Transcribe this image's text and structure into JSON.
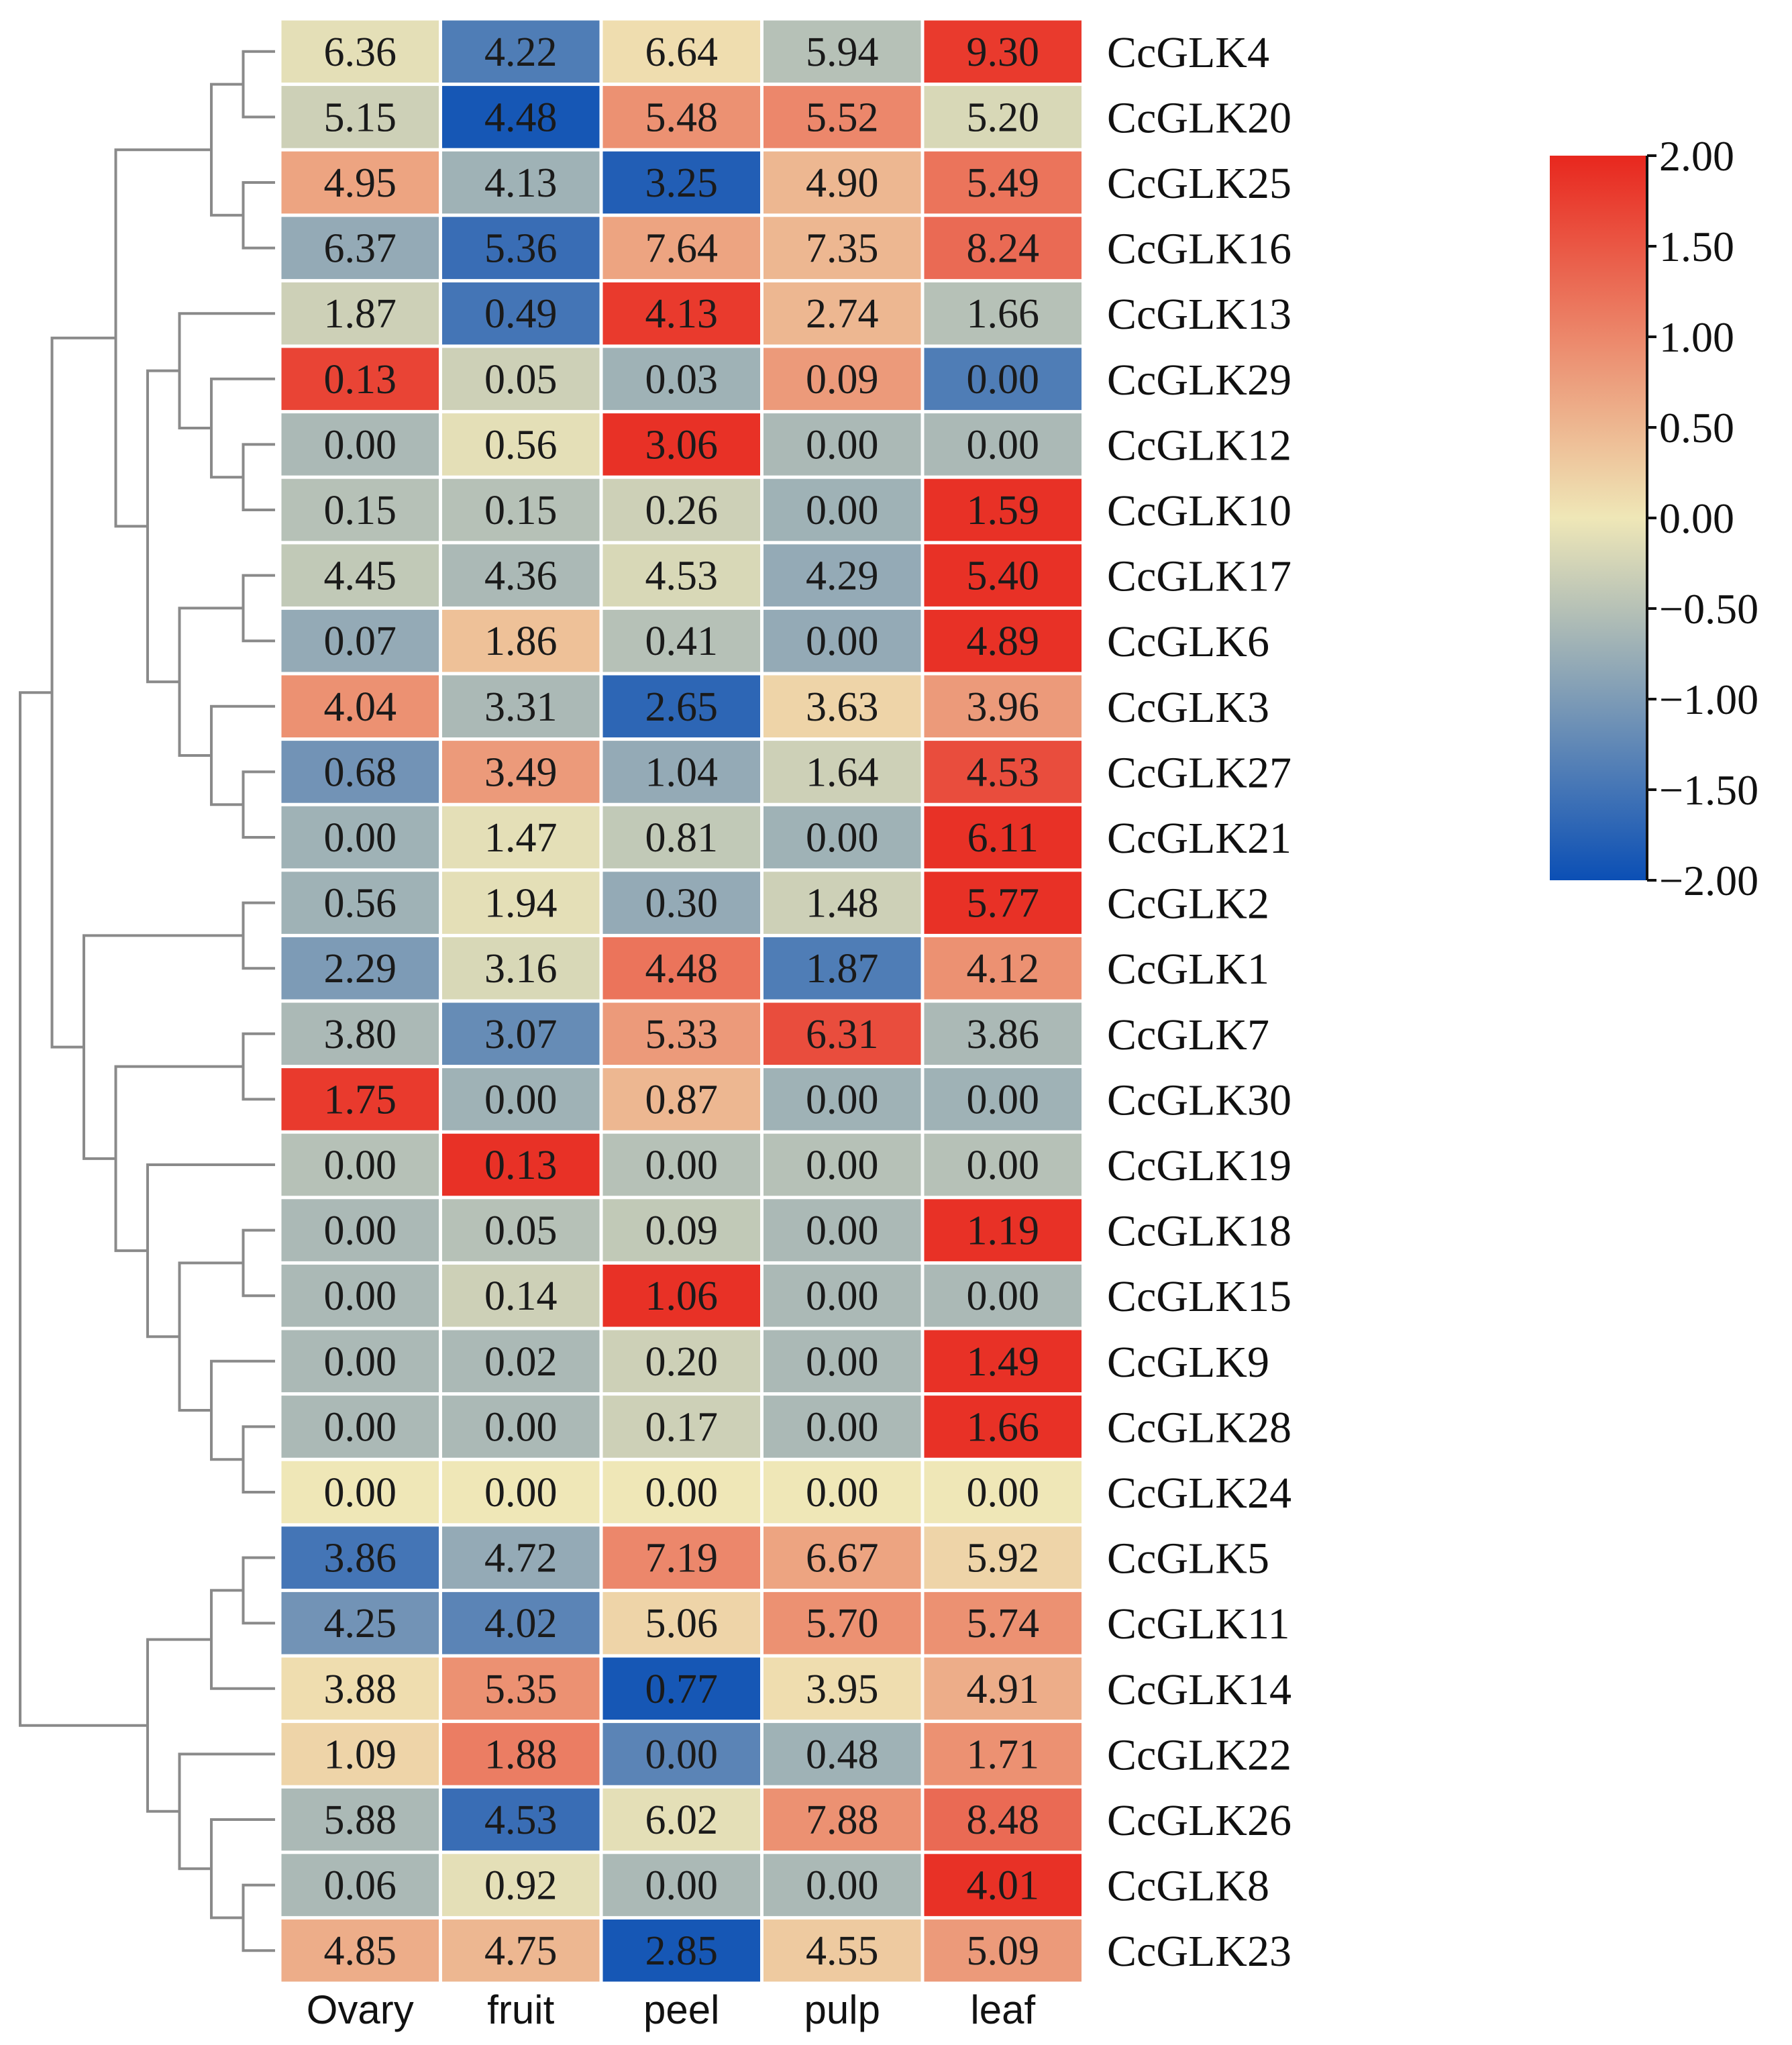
{
  "chart_data": {
    "type": "heatmap",
    "columns": [
      "Ovary",
      "fruit",
      "peel",
      "pulp",
      "leaf"
    ],
    "rows": [
      {
        "gene": "CcGLK4",
        "values": [
          6.36,
          4.22,
          6.64,
          5.94,
          9.3
        ],
        "display": [
          "6.36",
          "4.22",
          "6.64",
          "5.94",
          "9.30"
        ],
        "z": [
          -0.1,
          -1.4,
          0.1,
          -0.5,
          1.8
        ]
      },
      {
        "gene": "CcGLK20",
        "values": [
          5.15,
          4.48,
          5.48,
          5.52,
          5.2
        ],
        "display": [
          "5.15",
          "4.48",
          "5.48",
          "5.52",
          "5.20"
        ],
        "z": [
          -0.3,
          -1.9,
          0.9,
          1.0,
          -0.2
        ]
      },
      {
        "gene": "CcGLK25",
        "values": [
          4.95,
          4.13,
          3.25,
          4.9,
          5.49
        ],
        "display": [
          "4.95",
          "4.13",
          "3.25",
          "4.90",
          "5.49"
        ],
        "z": [
          0.7,
          -0.7,
          -1.8,
          0.5,
          1.2
        ]
      },
      {
        "gene": "CcGLK16",
        "values": [
          6.37,
          5.36,
          7.64,
          7.35,
          8.24
        ],
        "display": [
          "6.37",
          "5.36",
          "7.64",
          "7.35",
          "8.24"
        ],
        "z": [
          -0.8,
          -1.6,
          0.7,
          0.5,
          1.3
        ]
      },
      {
        "gene": "CcGLK13",
        "values": [
          1.87,
          0.49,
          4.13,
          2.74,
          1.66
        ],
        "display": [
          "1.87",
          "0.49",
          "4.13",
          "2.74",
          "1.66"
        ],
        "z": [
          -0.3,
          -1.5,
          1.8,
          0.5,
          -0.5
        ]
      },
      {
        "gene": "CcGLK29",
        "values": [
          0.13,
          0.05,
          0.03,
          0.09,
          0.0
        ],
        "display": [
          "0.13",
          "0.05",
          "0.03",
          "0.09",
          "0.00"
        ],
        "z": [
          1.7,
          -0.3,
          -0.7,
          0.8,
          -1.4
        ]
      },
      {
        "gene": "CcGLK12",
        "values": [
          0.0,
          0.56,
          3.06,
          0.0,
          0.0
        ],
        "display": [
          "0.00",
          "0.56",
          "3.06",
          "0.00",
          "0.00"
        ],
        "z": [
          -0.6,
          -0.1,
          1.9,
          -0.6,
          -0.6
        ]
      },
      {
        "gene": "CcGLK10",
        "values": [
          0.15,
          0.15,
          0.26,
          0.0,
          1.59
        ],
        "display": [
          "0.15",
          "0.15",
          "0.26",
          "0.00",
          "1.59"
        ],
        "z": [
          -0.5,
          -0.5,
          -0.3,
          -0.7,
          1.9
        ]
      },
      {
        "gene": "CcGLK17",
        "values": [
          4.45,
          4.36,
          4.53,
          4.29,
          5.4
        ],
        "display": [
          "4.45",
          "4.36",
          "4.53",
          "4.29",
          "5.40"
        ],
        "z": [
          -0.4,
          -0.6,
          -0.2,
          -0.8,
          1.9
        ]
      },
      {
        "gene": "CcGLK6",
        "values": [
          0.07,
          1.86,
          0.41,
          0.0,
          4.89
        ],
        "display": [
          "0.07",
          "1.86",
          "0.41",
          "0.00",
          "4.89"
        ],
        "z": [
          -0.8,
          0.4,
          -0.5,
          -0.8,
          1.9
        ]
      },
      {
        "gene": "CcGLK3",
        "values": [
          4.04,
          3.31,
          2.65,
          3.63,
          3.96
        ],
        "display": [
          "4.04",
          "3.31",
          "2.65",
          "3.63",
          "3.96"
        ],
        "z": [
          0.9,
          -0.6,
          -1.7,
          0.2,
          0.8
        ]
      },
      {
        "gene": "CcGLK27",
        "values": [
          0.68,
          3.49,
          1.04,
          1.64,
          4.53
        ],
        "display": [
          "0.68",
          "3.49",
          "1.04",
          "1.64",
          "4.53"
        ],
        "z": [
          -1.1,
          0.8,
          -0.8,
          -0.3,
          1.6
        ]
      },
      {
        "gene": "CcGLK21",
        "values": [
          0.0,
          1.47,
          0.81,
          0.0,
          6.11
        ],
        "display": [
          "0.00",
          "1.47",
          "0.81",
          "0.00",
          "6.11"
        ],
        "z": [
          -0.7,
          -0.1,
          -0.4,
          -0.7,
          1.9
        ]
      },
      {
        "gene": "CcGLK2",
        "values": [
          0.56,
          1.94,
          0.3,
          1.48,
          5.77
        ],
        "display": [
          "0.56",
          "1.94",
          "0.30",
          "1.48",
          "5.77"
        ],
        "z": [
          -0.7,
          -0.1,
          -0.8,
          -0.3,
          1.9
        ]
      },
      {
        "gene": "CcGLK1",
        "values": [
          2.29,
          3.16,
          4.48,
          1.87,
          4.12
        ],
        "display": [
          "2.29",
          "3.16",
          "4.48",
          "1.87",
          "4.12"
        ],
        "z": [
          -1.0,
          -0.2,
          1.2,
          -1.4,
          0.9
        ]
      },
      {
        "gene": "CcGLK7",
        "values": [
          3.8,
          3.07,
          5.33,
          6.31,
          3.86
        ],
        "display": [
          "3.80",
          "3.07",
          "5.33",
          "6.31",
          "3.86"
        ],
        "z": [
          -0.6,
          -1.2,
          0.8,
          1.6,
          -0.6
        ]
      },
      {
        "gene": "CcGLK30",
        "values": [
          1.75,
          0.0,
          0.87,
          0.0,
          0.0
        ],
        "display": [
          "1.75",
          "0.00",
          "0.87",
          "0.00",
          "0.00"
        ],
        "z": [
          1.8,
          -0.7,
          0.5,
          -0.7,
          -0.7
        ]
      },
      {
        "gene": "CcGLK19",
        "values": [
          0.0,
          0.13,
          0.0,
          0.0,
          0.0
        ],
        "display": [
          "0.00",
          "0.13",
          "0.00",
          "0.00",
          "0.00"
        ],
        "z": [
          -0.5,
          1.9,
          -0.5,
          -0.5,
          -0.5
        ]
      },
      {
        "gene": "CcGLK18",
        "values": [
          0.0,
          0.05,
          0.09,
          0.0,
          1.19
        ],
        "display": [
          "0.00",
          "0.05",
          "0.09",
          "0.00",
          "1.19"
        ],
        "z": [
          -0.6,
          -0.5,
          -0.4,
          -0.6,
          1.9
        ]
      },
      {
        "gene": "CcGLK15",
        "values": [
          0.0,
          0.14,
          1.06,
          0.0,
          0.0
        ],
        "display": [
          "0.00",
          "0.14",
          "1.06",
          "0.00",
          "0.00"
        ],
        "z": [
          -0.6,
          -0.3,
          1.9,
          -0.6,
          -0.6
        ]
      },
      {
        "gene": "CcGLK9",
        "values": [
          0.0,
          0.02,
          0.2,
          0.0,
          1.49
        ],
        "display": [
          "0.00",
          "0.02",
          "0.20",
          "0.00",
          "1.49"
        ],
        "z": [
          -0.6,
          -0.6,
          -0.3,
          -0.6,
          1.9
        ]
      },
      {
        "gene": "CcGLK28",
        "values": [
          0.0,
          0.0,
          0.17,
          0.0,
          1.66
        ],
        "display": [
          "0.00",
          "0.00",
          "0.17",
          "0.00",
          "1.66"
        ],
        "z": [
          -0.6,
          -0.6,
          -0.3,
          -0.6,
          1.9
        ]
      },
      {
        "gene": "CcGLK24",
        "values": [
          0.0,
          0.0,
          0.0,
          0.0,
          0.0
        ],
        "display": [
          "0.00",
          "0.00",
          "0.00",
          "0.00",
          "0.00"
        ],
        "z": [
          0.0,
          0.0,
          0.0,
          0.0,
          0.0
        ]
      },
      {
        "gene": "CcGLK5",
        "values": [
          3.86,
          4.72,
          7.19,
          6.67,
          5.92
        ],
        "display": [
          "3.86",
          "4.72",
          "7.19",
          "6.67",
          "5.92"
        ],
        "z": [
          -1.5,
          -0.8,
          1.0,
          0.7,
          0.2
        ]
      },
      {
        "gene": "CcGLK11",
        "values": [
          4.25,
          4.02,
          5.06,
          5.7,
          5.74
        ],
        "display": [
          "4.25",
          "4.02",
          "5.06",
          "5.70",
          "5.74"
        ],
        "z": [
          -1.1,
          -1.3,
          0.2,
          0.9,
          0.9
        ]
      },
      {
        "gene": "CcGLK14",
        "values": [
          3.88,
          5.35,
          0.77,
          3.95,
          4.91
        ],
        "display": [
          "3.88",
          "5.35",
          "0.77",
          "3.95",
          "4.91"
        ],
        "z": [
          0.1,
          0.9,
          -1.9,
          0.1,
          0.6
        ]
      },
      {
        "gene": "CcGLK22",
        "values": [
          1.09,
          1.88,
          0.0,
          0.48,
          1.71
        ],
        "display": [
          "1.09",
          "1.88",
          "0.00",
          "0.48",
          "1.71"
        ],
        "z": [
          0.2,
          1.1,
          -1.3,
          -0.7,
          0.9
        ]
      },
      {
        "gene": "CcGLK26",
        "values": [
          5.88,
          4.53,
          6.02,
          7.88,
          8.48
        ],
        "display": [
          "5.88",
          "4.53",
          "6.02",
          "7.88",
          "8.48"
        ],
        "z": [
          -0.6,
          -1.6,
          -0.1,
          0.9,
          1.3
        ]
      },
      {
        "gene": "CcGLK8",
        "values": [
          0.06,
          0.92,
          0.0,
          0.0,
          4.01
        ],
        "display": [
          "0.06",
          "0.92",
          "0.00",
          "0.00",
          "4.01"
        ],
        "z": [
          -0.6,
          -0.1,
          -0.6,
          -0.6,
          1.9
        ]
      },
      {
        "gene": "CcGLK23",
        "values": [
          4.85,
          4.75,
          2.85,
          4.55,
          5.09
        ],
        "display": [
          "4.85",
          "4.75",
          "2.85",
          "4.55",
          "5.09"
        ],
        "z": [
          0.6,
          0.5,
          -1.9,
          0.3,
          0.8
        ]
      }
    ],
    "colorbar": {
      "min": -2.0,
      "max": 2.0,
      "ticks": [
        "2.00",
        "1.50",
        "1.00",
        "0.50",
        "0.00",
        "−0.50",
        "−1.00",
        "−1.50",
        "−2.00"
      ],
      "colors": {
        "low": "#0b4fb5",
        "mid": "#efe7b7",
        "high": "#e8271e"
      }
    },
    "legend_position": "right",
    "grid": false
  }
}
